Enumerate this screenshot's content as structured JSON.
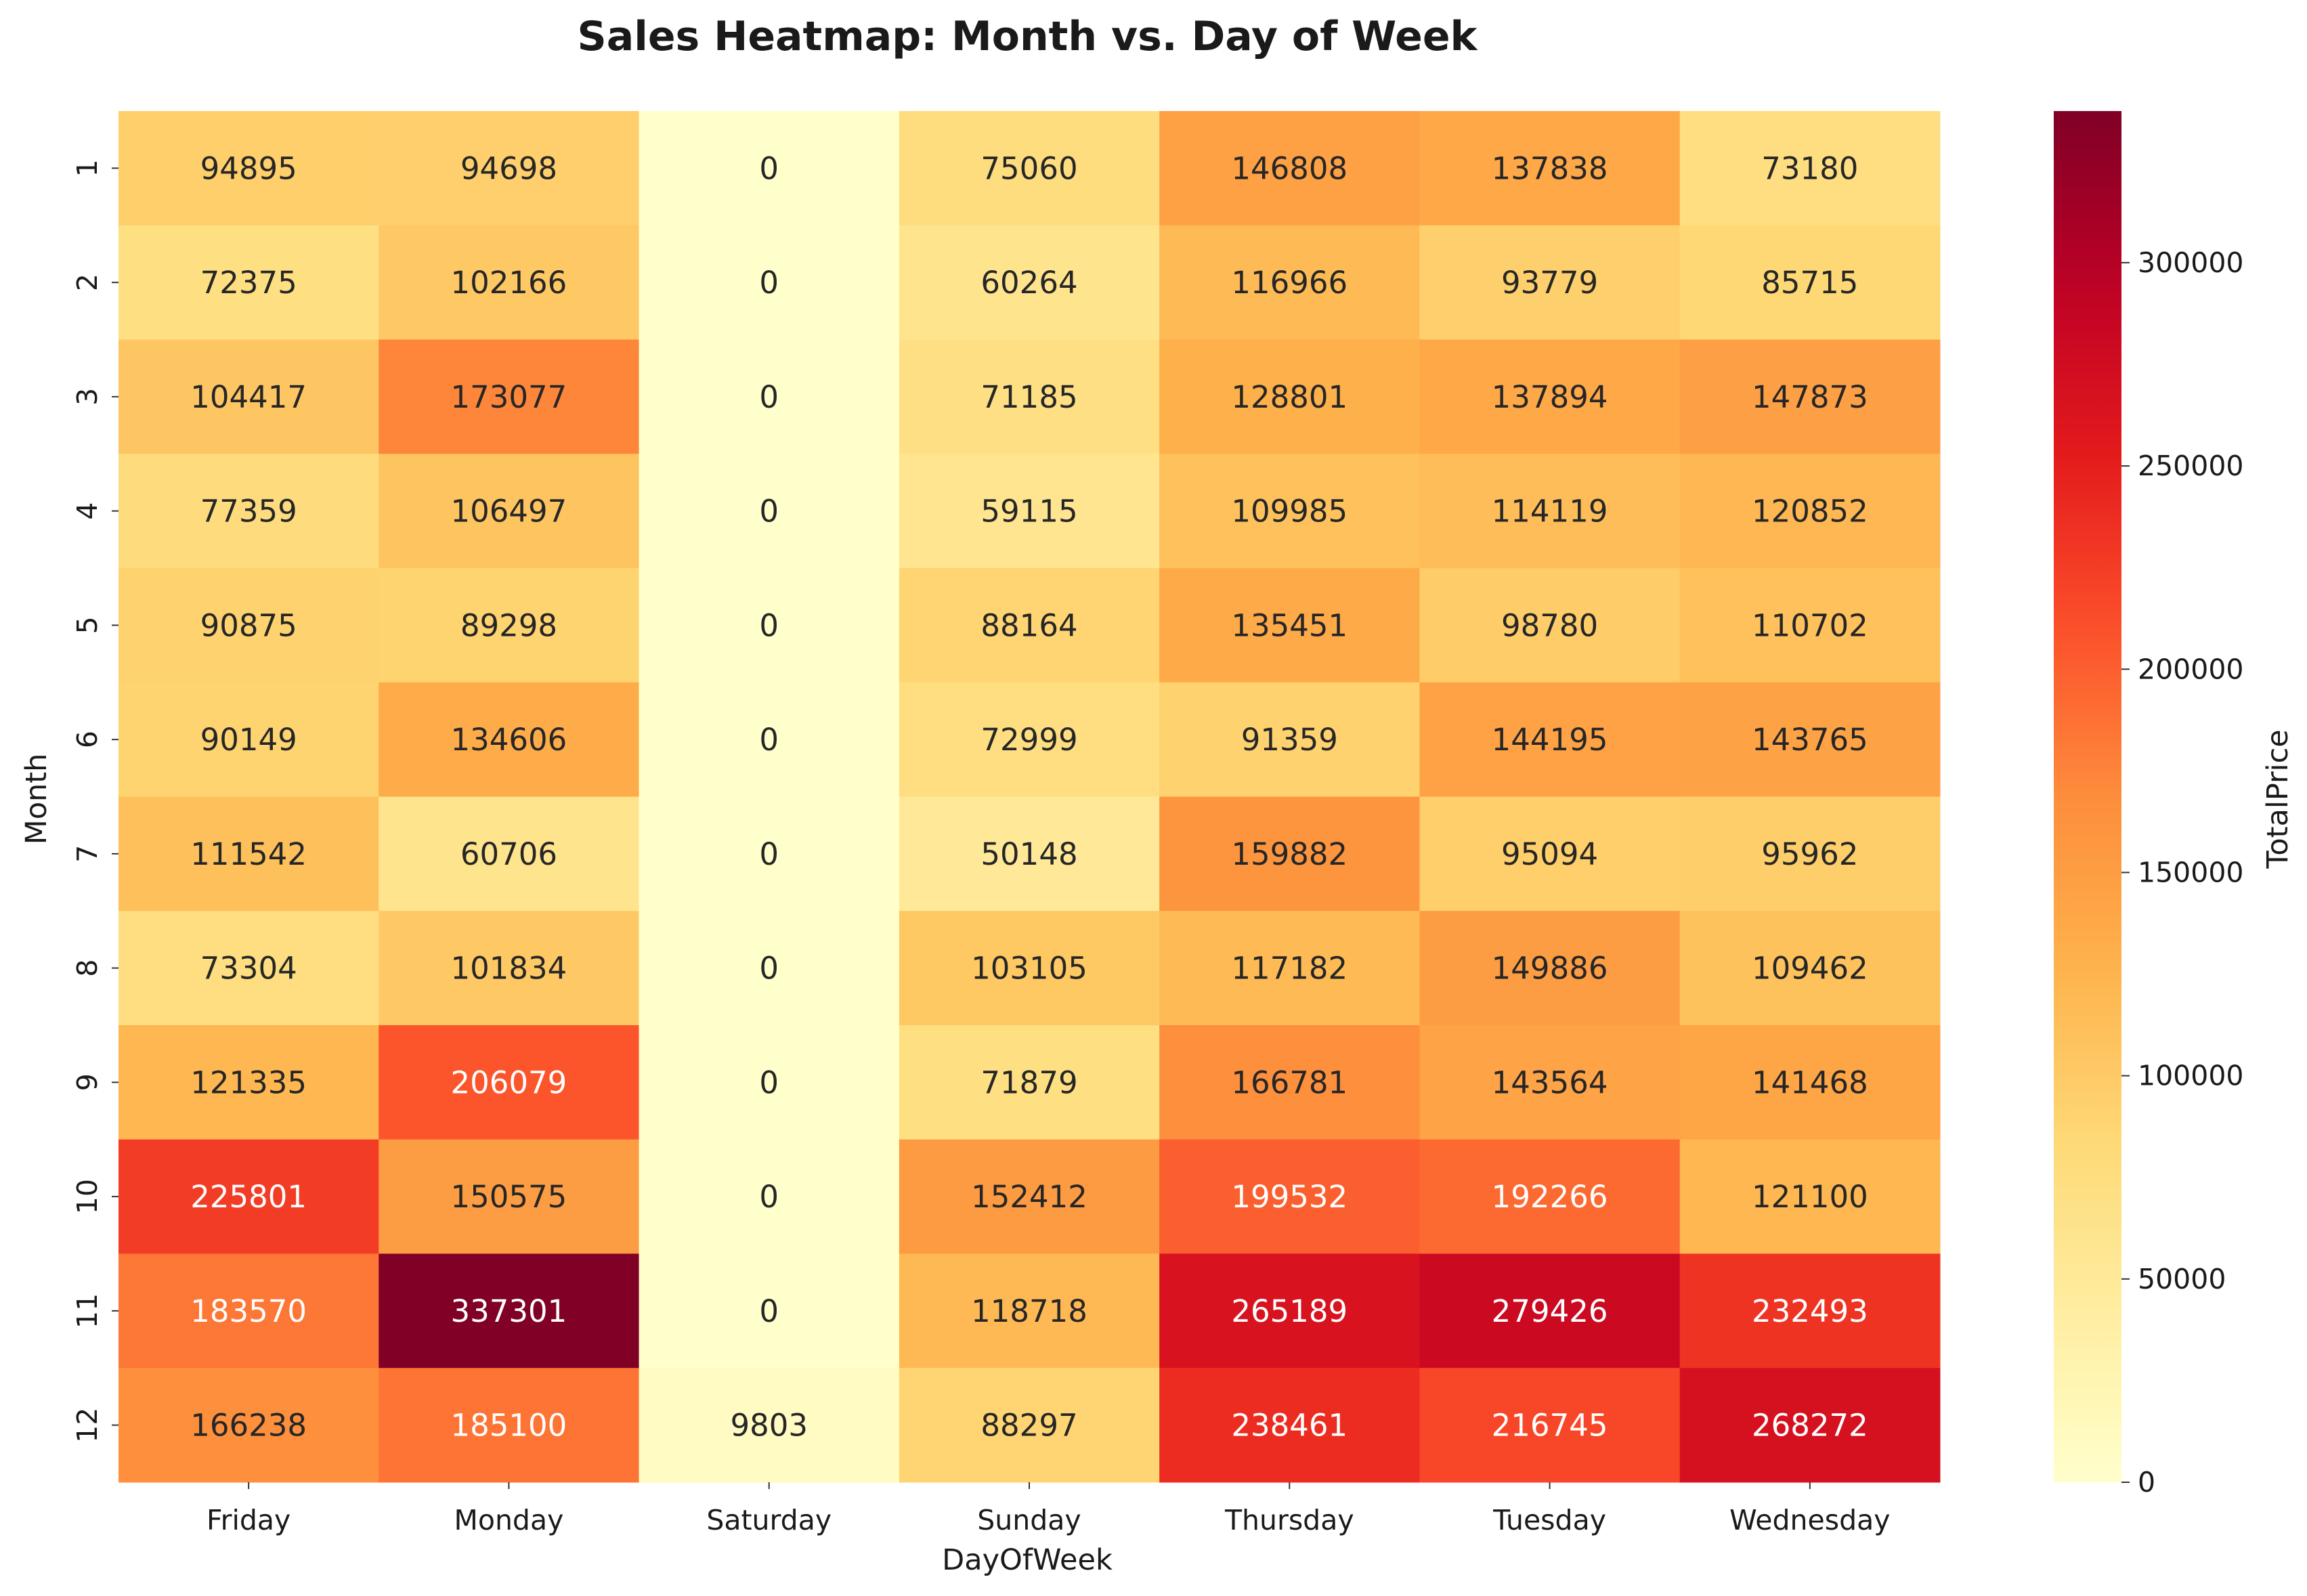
{
  "chart_data": {
    "type": "heatmap",
    "title": "Sales Heatmap: Month vs. Day of Week",
    "xlabel": "DayOfWeek",
    "ylabel": "Month",
    "colorbar_label": "TotalPrice",
    "colormap": "YlOrRd",
    "x_categories": [
      "Friday",
      "Monday",
      "Saturday",
      "Sunday",
      "Thursday",
      "Tuesday",
      "Wednesday"
    ],
    "y_categories": [
      "1",
      "2",
      "3",
      "4",
      "5",
      "6",
      "7",
      "8",
      "9",
      "10",
      "11",
      "12"
    ],
    "values": [
      [
        94895,
        94698,
        0,
        75060,
        146808,
        137838,
        73180
      ],
      [
        72375,
        102166,
        0,
        60264,
        116966,
        93779,
        85715
      ],
      [
        104417,
        173077,
        0,
        71185,
        128801,
        137894,
        147873
      ],
      [
        77359,
        106497,
        0,
        59115,
        109985,
        114119,
        120852
      ],
      [
        90875,
        89298,
        0,
        88164,
        135451,
        98780,
        110702
      ],
      [
        90149,
        134606,
        0,
        72999,
        91359,
        144195,
        143765
      ],
      [
        111542,
        60706,
        0,
        50148,
        159882,
        95094,
        95962
      ],
      [
        73304,
        101834,
        0,
        103105,
        117182,
        149886,
        109462
      ],
      [
        121335,
        206079,
        0,
        71879,
        166781,
        143564,
        141468
      ],
      [
        225801,
        150575,
        0,
        152412,
        199532,
        192266,
        121100
      ],
      [
        183570,
        337301,
        0,
        118718,
        265189,
        279426,
        232493
      ],
      [
        166238,
        185100,
        9803,
        88297,
        238461,
        216745,
        268272
      ]
    ],
    "vmin": 0,
    "vmax": 337301,
    "colorbar_ticks": [
      0,
      50000,
      100000,
      150000,
      200000,
      250000,
      300000
    ],
    "colorbar_tick_labels": [
      "0",
      "50000",
      "100000",
      "150000",
      "200000",
      "250000",
      "300000"
    ],
    "grid": false
  }
}
